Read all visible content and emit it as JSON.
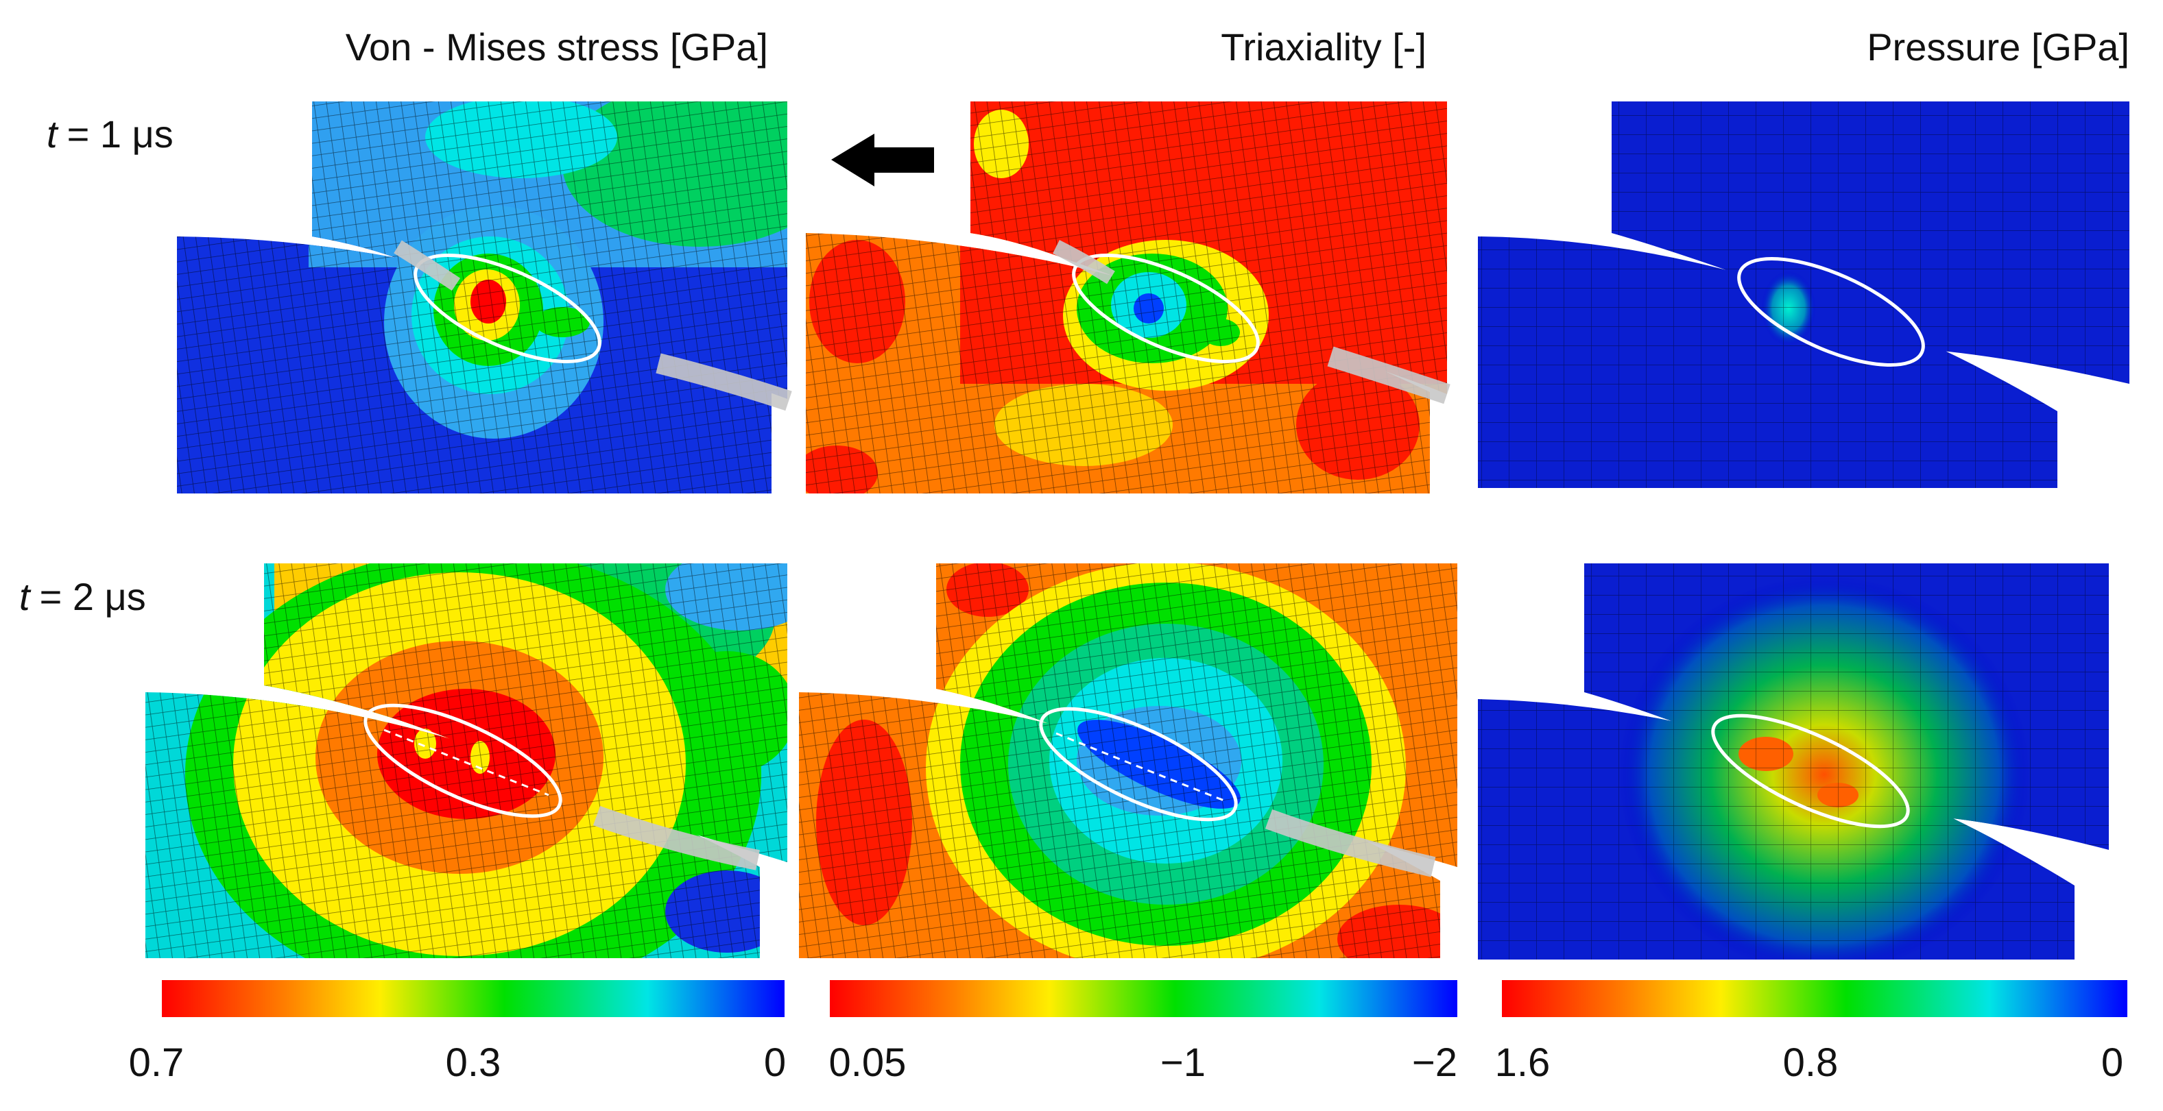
{
  "columns": [
    {
      "title": "Von - Mises stress [GPa]",
      "colorbar": {
        "left_label": "0.7",
        "mid_label": "0.3",
        "right_label": "0"
      }
    },
    {
      "title": "Triaxiality [-]",
      "colorbar": {
        "left_label": "0.05",
        "mid_label": "−1",
        "right_label": "−2"
      }
    },
    {
      "title": "Pressure [GPa]",
      "colorbar": {
        "left_label": "1.6",
        "mid_label": "0.8",
        "right_label": "0"
      }
    }
  ],
  "rows": [
    {
      "time_label": "t",
      "time_value": "= 1 μs"
    },
    {
      "time_label": "t",
      "time_value": "= 2 μs"
    }
  ],
  "colormap": [
    "#ff0000",
    "#ff8000",
    "#ffee00",
    "#00e000",
    "#00e5e5",
    "#0000ff"
  ],
  "colors": {
    "mesh_line": "#000000",
    "ellipse": "#ffffff",
    "arrow": "#000000"
  },
  "icons": {
    "direction_arrow": "left-arrow-icon"
  }
}
